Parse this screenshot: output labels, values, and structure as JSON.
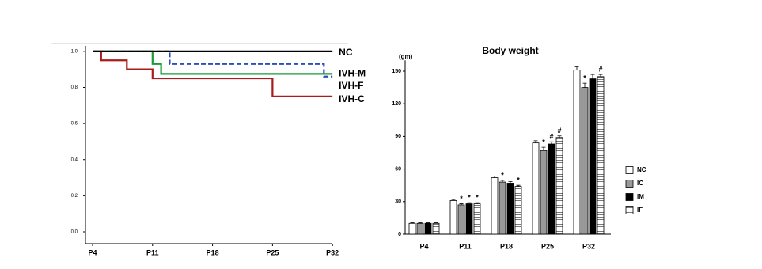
{
  "chart_data": [
    {
      "type": "line",
      "step": true,
      "xlim": [
        4,
        33
      ],
      "xticks": [
        {
          "value": 4,
          "label": "P4"
        },
        {
          "value": 11,
          "label": "P11"
        },
        {
          "value": 18,
          "label": "P18"
        },
        {
          "value": 25,
          "label": "P25"
        },
        {
          "value": 32,
          "label": "P32"
        }
      ],
      "ylim": [
        0,
        1.03
      ],
      "yticks": [
        {
          "value": 0,
          "label": "0.0"
        },
        {
          "value": 0.2,
          "label": "0.2"
        },
        {
          "value": 0.4,
          "label": "0.4"
        },
        {
          "value": 0.6,
          "label": "0.6"
        },
        {
          "value": 0.8,
          "label": "0.8"
        },
        {
          "value": 1,
          "label": "1.0"
        }
      ],
      "series": [
        {
          "name": "NC",
          "color": "#000000",
          "x": [
            4,
            32
          ],
          "values": [
            1,
            1
          ]
        },
        {
          "name": "IVH-M",
          "color": "#1a9a3a",
          "x": [
            4,
            11,
            11,
            12,
            12,
            32
          ],
          "values": [
            1,
            1,
            0.93,
            0.93,
            0.875,
            0.875
          ]
        },
        {
          "name": "IVH-F",
          "color": "#2b4fbf",
          "dash": true,
          "x": [
            4,
            13,
            13,
            31,
            31,
            32
          ],
          "values": [
            1,
            1,
            0.93,
            0.93,
            0.86,
            0.86
          ]
        },
        {
          "name": "IVH-C",
          "color": "#a81c1c",
          "x": [
            4,
            5,
            5,
            8,
            8,
            11,
            11,
            25,
            25,
            32
          ],
          "values": [
            1,
            1,
            0.95,
            0.95,
            0.9,
            0.9,
            0.85,
            0.85,
            0.75,
            0.75
          ]
        }
      ]
    },
    {
      "type": "bar",
      "title": "Body weight",
      "y_label": "(gm)",
      "categories": [
        "P4",
        "P11",
        "P18",
        "P25",
        "P32"
      ],
      "ylim": [
        0,
        160
      ],
      "yticks": [
        0,
        30,
        60,
        90,
        120,
        150
      ],
      "series": [
        {
          "name": "NC",
          "color": "#ffffff",
          "values": [
            10,
            31,
            52,
            84,
            151
          ],
          "errors": [
            0.5,
            1,
            1.5,
            2,
            3
          ],
          "markers": [
            null,
            null,
            null,
            null,
            null
          ]
        },
        {
          "name": "IC",
          "color": "#999999",
          "values": [
            10,
            27,
            48,
            77,
            135
          ],
          "errors": [
            0.5,
            1,
            1.5,
            3,
            4
          ],
          "markers": [
            null,
            "*",
            "*",
            "*",
            "*"
          ]
        },
        {
          "name": "IM",
          "color": "#000000",
          "values": [
            10,
            28,
            47,
            83,
            143
          ],
          "errors": [
            0.5,
            1,
            1.5,
            2,
            4
          ],
          "markers": [
            null,
            "*",
            null,
            "#",
            null
          ]
        },
        {
          "name": "IF",
          "color": "#ffffff",
          "hatch": true,
          "values": [
            10,
            28,
            44,
            89,
            145
          ],
          "errors": [
            0.5,
            1,
            1,
            1.5,
            2
          ],
          "markers": [
            null,
            "*",
            "*",
            "#",
            "#"
          ]
        }
      ]
    }
  ]
}
